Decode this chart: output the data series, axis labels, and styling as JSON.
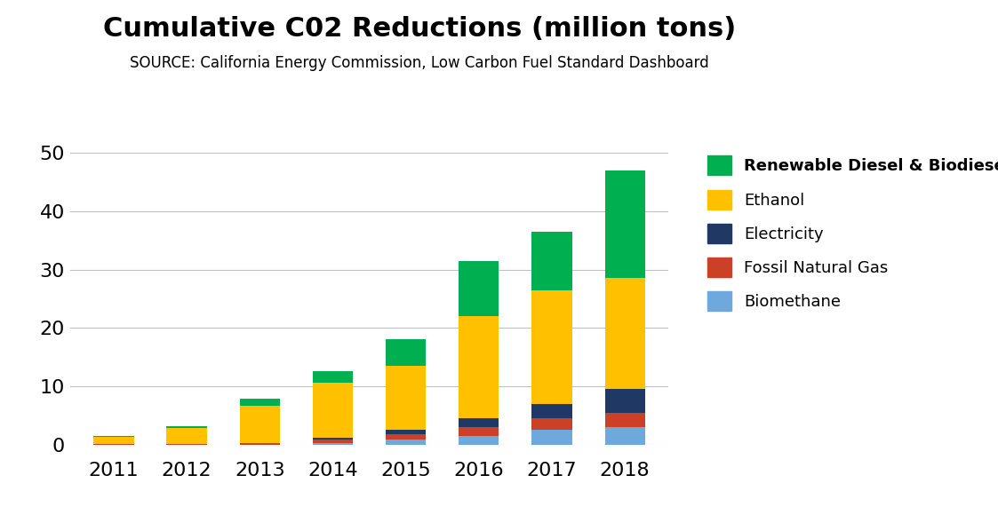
{
  "title": "Cumulative C02 Reductions (million tons)",
  "subtitle": "SOURCE: California Energy Commission, Low Carbon Fuel Standard Dashboard",
  "years": [
    "2011",
    "2012",
    "2013",
    "2014",
    "2015",
    "2016",
    "2017",
    "2018"
  ],
  "series": {
    "Biomethane": [
      0.0,
      0.0,
      0.0,
      0.3,
      0.8,
      1.5,
      2.5,
      3.0
    ],
    "Fossil Natural Gas": [
      0.1,
      0.1,
      0.2,
      0.5,
      1.0,
      1.5,
      2.0,
      2.5
    ],
    "Electricity": [
      0.0,
      0.0,
      0.0,
      0.3,
      0.7,
      1.5,
      2.5,
      4.0
    ],
    "Ethanol": [
      1.2,
      2.8,
      6.5,
      9.5,
      11.0,
      17.5,
      19.5,
      19.0
    ],
    "Renewable Diesel & Biodiesel": [
      0.2,
      0.2,
      1.1,
      2.0,
      4.5,
      9.5,
      10.0,
      18.5
    ]
  },
  "colors": {
    "Biomethane": "#6fa8dc",
    "Fossil Natural Gas": "#cc4125",
    "Electricity": "#1f3864",
    "Ethanol": "#ffc000",
    "Renewable Diesel & Biodiesel": "#00b050"
  },
  "ylim": [
    0,
    52
  ],
  "yticks": [
    0,
    10,
    20,
    30,
    40,
    50
  ],
  "legend_order": [
    "Renewable Diesel & Biodiesel",
    "Ethanol",
    "Electricity",
    "Fossil Natural Gas",
    "Biomethane"
  ],
  "title_fontsize": 22,
  "subtitle_fontsize": 12,
  "tick_fontsize": 16,
  "legend_fontsize": 13,
  "background_color": "#ffffff"
}
